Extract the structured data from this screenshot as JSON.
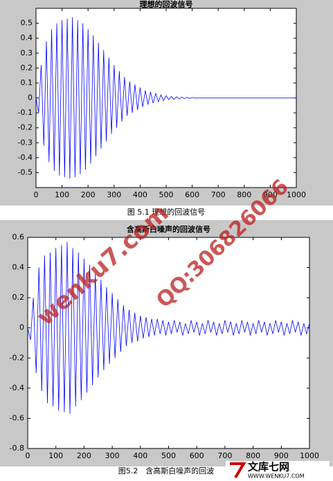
{
  "chart_data": [
    {
      "type": "line",
      "title": "理想的回波信号",
      "caption": "图 5.1 理想的回波信号",
      "xlim": [
        0,
        1000
      ],
      "ylim": [
        -0.6,
        0.6
      ],
      "xticks": [
        0,
        100,
        200,
        300,
        400,
        500,
        600,
        700,
        800,
        900,
        1000
      ],
      "yticks": [
        -0.5,
        -0.4,
        -0.3,
        -0.2,
        -0.1,
        0,
        0.1,
        0.2,
        0.3,
        0.4,
        0.5
      ],
      "series": [
        {
          "color": "#0000ff",
          "x": [
            0,
            10,
            20,
            30,
            40,
            50,
            60,
            70,
            80,
            90,
            100,
            110,
            120,
            130,
            140,
            150,
            160,
            170,
            180,
            190,
            200,
            210,
            220,
            230,
            240,
            250,
            260,
            270,
            280,
            290,
            300,
            310,
            320,
            330,
            340,
            350,
            360,
            370,
            380,
            390,
            400,
            410,
            420,
            430,
            440,
            450,
            460,
            470,
            480,
            490,
            500,
            510,
            520,
            530,
            540,
            550,
            560,
            570,
            580,
            590,
            600,
            610,
            620,
            630,
            640,
            650,
            660,
            670,
            680,
            690,
            700,
            710,
            720,
            730,
            740,
            750,
            760,
            770,
            780,
            790,
            800,
            810,
            820,
            830,
            840,
            850,
            860,
            870,
            880,
            890,
            900,
            910,
            920,
            930,
            940,
            950,
            960,
            970,
            980,
            990,
            1000
          ],
          "values": [
            0,
            -0.1,
            0.22,
            -0.32,
            0.38,
            -0.43,
            0.46,
            -0.49,
            0.5,
            -0.52,
            0.52,
            -0.53,
            0.53,
            -0.54,
            0.54,
            -0.53,
            0.52,
            -0.51,
            0.5,
            -0.48,
            0.46,
            -0.44,
            0.42,
            -0.39,
            0.37,
            -0.34,
            0.32,
            -0.29,
            0.27,
            -0.24,
            0.22,
            -0.2,
            0.18,
            -0.16,
            0.14,
            -0.12,
            0.11,
            -0.1,
            0.09,
            -0.08,
            0.07,
            -0.06,
            0.05,
            -0.045,
            0.04,
            -0.035,
            0.03,
            -0.025,
            0.02,
            -0.018,
            0.015,
            -0.012,
            0.01,
            -0.009,
            0.008,
            -0.007,
            0.006,
            -0.005,
            0.004,
            -0.003,
            0.003,
            0,
            0,
            0,
            0,
            0,
            0,
            0,
            0,
            0,
            0,
            0,
            0,
            0,
            0,
            0,
            0,
            0,
            0,
            0,
            0,
            0,
            0,
            0,
            0,
            0,
            0,
            0,
            0,
            0,
            0,
            0,
            0,
            0,
            0,
            0,
            0,
            0,
            0,
            0,
            0
          ]
        }
      ]
    },
    {
      "type": "line",
      "title": "含高斯白噪声的回波信号",
      "caption": "图5.2　含高斯白噪声的回波",
      "xlim": [
        0,
        1000
      ],
      "ylim": [
        -0.8,
        0.6
      ],
      "xticks": [
        0,
        100,
        200,
        300,
        400,
        500,
        600,
        700,
        800,
        900,
        1000
      ],
      "yticks": [
        -0.8,
        -0.6,
        -0.4,
        -0.2,
        0,
        0.2,
        0.4,
        0.6
      ],
      "series": [
        {
          "color": "#0000ff",
          "x": [
            0,
            10,
            20,
            30,
            40,
            50,
            60,
            70,
            80,
            90,
            100,
            110,
            120,
            130,
            140,
            150,
            160,
            170,
            180,
            190,
            200,
            210,
            220,
            230,
            240,
            250,
            260,
            270,
            280,
            290,
            300,
            310,
            320,
            330,
            340,
            350,
            360,
            370,
            380,
            390,
            400,
            410,
            420,
            430,
            440,
            450,
            460,
            470,
            480,
            490,
            500,
            510,
            520,
            530,
            540,
            550,
            560,
            570,
            580,
            590,
            600,
            610,
            620,
            630,
            640,
            650,
            660,
            670,
            680,
            690,
            700,
            710,
            720,
            730,
            740,
            750,
            760,
            770,
            780,
            790,
            800,
            810,
            820,
            830,
            840,
            850,
            860,
            870,
            880,
            890,
            900,
            910,
            920,
            930,
            940,
            950,
            960,
            970,
            980,
            990,
            1000
          ],
          "values": [
            0,
            -0.08,
            0.2,
            -0.3,
            0.4,
            -0.42,
            0.48,
            -0.5,
            0.5,
            -0.52,
            0.53,
            -0.55,
            0.55,
            -0.56,
            0.57,
            -0.57,
            0.53,
            -0.52,
            0.5,
            -0.48,
            0.46,
            -0.43,
            0.42,
            -0.38,
            0.36,
            -0.33,
            0.32,
            -0.28,
            0.27,
            -0.24,
            0.23,
            -0.2,
            0.19,
            -0.16,
            0.15,
            -0.12,
            0.12,
            -0.1,
            0.1,
            -0.09,
            0.08,
            -0.07,
            0.07,
            -0.06,
            0.06,
            -0.05,
            0.06,
            -0.04,
            0.05,
            -0.05,
            0.04,
            -0.04,
            0.05,
            -0.03,
            0.04,
            -0.05,
            0.03,
            -0.04,
            0.05,
            -0.03,
            0.04,
            -0.05,
            0.03,
            -0.04,
            0.05,
            -0.03,
            0.04,
            -0.05,
            0.03,
            -0.04,
            0.05,
            -0.03,
            0.04,
            -0.05,
            0.03,
            -0.04,
            0.05,
            -0.03,
            0.04,
            -0.05,
            0.03,
            -0.04,
            0.05,
            -0.03,
            0.04,
            -0.05,
            0.03,
            -0.04,
            0.05,
            -0.03,
            0.04,
            -0.05,
            0.03,
            -0.04,
            0.05,
            -0.03,
            0.04,
            -0.05,
            0.03,
            -0.04,
            0.03
          ]
        }
      ]
    }
  ],
  "watermarks": {
    "site": "wenku7.com",
    "qq": "QQ:306826066",
    "logo": "文库七网",
    "logo_url": "WWW.WENKU7.COM"
  }
}
